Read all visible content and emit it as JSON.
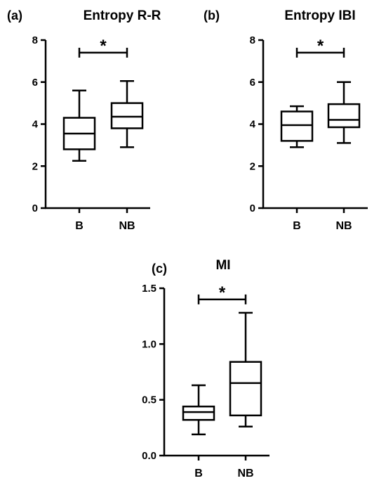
{
  "chart_data": [
    {
      "type": "box",
      "panel": "(a)",
      "title": "Entropy R-R",
      "xlabel": "",
      "ylabel": "",
      "ylim": [
        0,
        8
      ],
      "yticks": [
        "0",
        "2",
        "4",
        "6",
        "8"
      ],
      "ytick_values": [
        0,
        2,
        4,
        6,
        8
      ],
      "categories": [
        "B",
        "NB"
      ],
      "boxes": [
        {
          "category": "B",
          "min": 2.25,
          "q1": 2.8,
          "median": 3.55,
          "q3": 4.3,
          "max": 5.6
        },
        {
          "category": "NB",
          "min": 2.9,
          "q1": 3.8,
          "median": 4.35,
          "q3": 5.0,
          "max": 6.05
        }
      ],
      "significance": {
        "between": [
          "B",
          "NB"
        ],
        "marker": "*",
        "y": 7.4
      }
    },
    {
      "type": "box",
      "panel": "(b)",
      "title": "Entropy IBI",
      "xlabel": "",
      "ylabel": "",
      "ylim": [
        0,
        8
      ],
      "yticks": [
        "0",
        "2",
        "4",
        "6",
        "8"
      ],
      "ytick_values": [
        0,
        2,
        4,
        6,
        8
      ],
      "categories": [
        "B",
        "NB"
      ],
      "boxes": [
        {
          "category": "B",
          "min": 2.9,
          "q1": 3.2,
          "median": 3.95,
          "q3": 4.6,
          "max": 4.85
        },
        {
          "category": "NB",
          "min": 3.1,
          "q1": 3.85,
          "median": 4.2,
          "q3": 4.95,
          "max": 6.0
        }
      ],
      "significance": {
        "between": [
          "B",
          "NB"
        ],
        "marker": "*",
        "y": 7.4
      }
    },
    {
      "type": "box",
      "panel": "(c)",
      "title": "MI",
      "xlabel": "",
      "ylabel": "",
      "ylim": [
        0,
        1.5
      ],
      "yticks": [
        "0.0",
        "0.5",
        "1.0",
        "1.5"
      ],
      "ytick_values": [
        0,
        0.5,
        1.0,
        1.5
      ],
      "categories": [
        "B",
        "NB"
      ],
      "boxes": [
        {
          "category": "B",
          "min": 0.19,
          "q1": 0.32,
          "median": 0.39,
          "q3": 0.44,
          "max": 0.63
        },
        {
          "category": "NB",
          "min": 0.26,
          "q1": 0.36,
          "median": 0.65,
          "q3": 0.84,
          "max": 1.28
        }
      ],
      "significance": {
        "between": [
          "B",
          "NB"
        ],
        "marker": "*",
        "y": 1.4
      }
    }
  ]
}
